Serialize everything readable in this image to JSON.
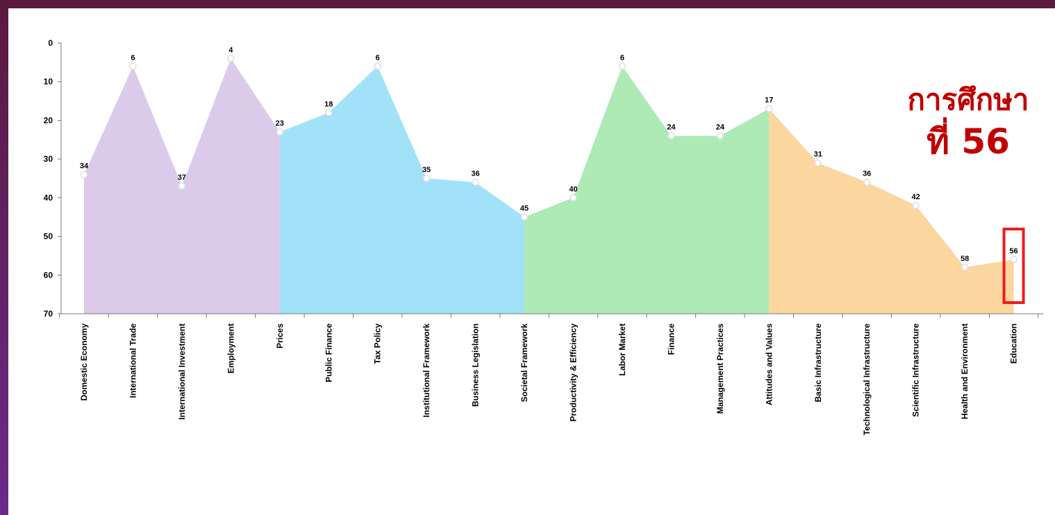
{
  "chart_data": {
    "type": "area",
    "ylim": [
      0,
      70
    ],
    "y_reversed": true,
    "yticks": [
      "0",
      "10",
      "20",
      "30",
      "40",
      "50",
      "60",
      "70"
    ],
    "categories": [
      "Domestic Economy",
      "International Trade",
      "International Investment",
      "Employment",
      "Prices",
      "Public Finance",
      "Tax Policy",
      "Institutional Framework",
      "Business Legislation",
      "Societal Framework",
      "Productivity & Efficiency",
      "Labor Market",
      "Finance",
      "Management Practices",
      "Attitudes and Values",
      "Basic Infrastructure",
      "Technological Infrastructure",
      "Scientific Infrastructure",
      "Health and Environment",
      "Education"
    ],
    "values": [
      34,
      6,
      37,
      4,
      23,
      18,
      6,
      35,
      36,
      45,
      40,
      6,
      24,
      24,
      17,
      31,
      36,
      42,
      58,
      56
    ],
    "data_labels": [
      "34",
      "6",
      "37",
      "4",
      "23",
      "18",
      "6",
      "35",
      "36",
      "45",
      "40",
      "6",
      "24",
      "24",
      "17",
      "31",
      "36",
      "42",
      "58",
      "56"
    ],
    "groups": [
      {
        "start": 0,
        "end": 4,
        "color": "#dccaea"
      },
      {
        "start": 4,
        "end": 9,
        "color": "#a2e2f8"
      },
      {
        "start": 9,
        "end": 14,
        "color": "#aeeab6"
      },
      {
        "start": 14,
        "end": 19,
        "color": "#fbd69f"
      }
    ],
    "grid": false,
    "highlight_index": 19,
    "highlight_color": "#ee1c1c"
  },
  "callout": {
    "line1": "การศึกษา",
    "line2": "ที่ 56",
    "color": "#c00000"
  }
}
